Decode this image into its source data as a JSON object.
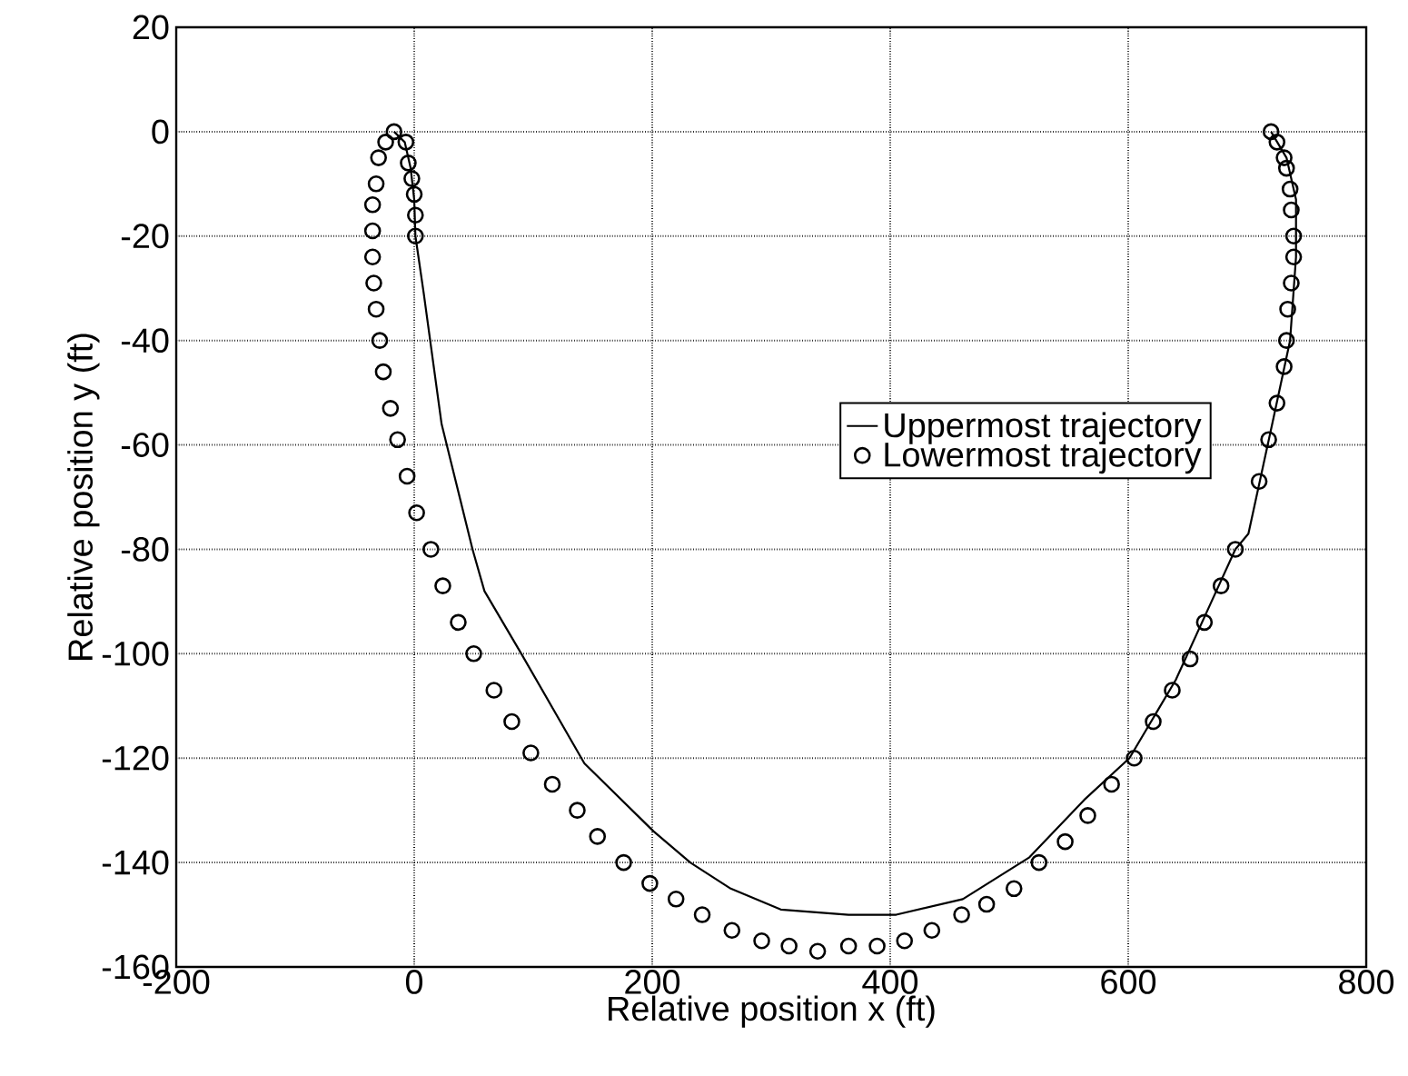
{
  "chart_data": {
    "type": "line",
    "xlabel": "Relative position x (ft)",
    "ylabel": "Relative position y (ft)",
    "xlim": [
      -200,
      800
    ],
    "ylim": [
      -160,
      20
    ],
    "xticks": [
      -200,
      0,
      200,
      400,
      600,
      800
    ],
    "yticks": [
      -160,
      -140,
      -120,
      -100,
      -80,
      -60,
      -40,
      -20,
      0,
      20
    ],
    "grid": true,
    "legend": "right",
    "series": [
      {
        "name": "Uppermost trajectory",
        "marker": "none",
        "line_style": "solid",
        "color": "#000000",
        "x": [
          -17,
          -8,
          -3,
          0,
          1,
          8,
          23,
          49,
          59,
          90,
          143,
          201,
          232,
          266,
          308,
          365,
          405,
          461,
          517,
          563,
          601,
          640,
          670,
          690,
          701,
          721,
          736,
          741,
          741,
          733,
          720
        ],
        "values": [
          0,
          -2,
          -7,
          -13,
          -20,
          -31,
          -56,
          -80,
          -88,
          -100,
          -121,
          -134,
          -140,
          -145,
          -149,
          -150,
          -150,
          -147,
          -139,
          -128,
          -120,
          -105,
          -90,
          -80,
          -77,
          -56,
          -40,
          -24,
          -13,
          -5,
          0
        ]
      },
      {
        "name": "Lowermost trajectory",
        "type": "scatter",
        "marker": "circle",
        "color": "#000000",
        "x": [
          1,
          1,
          0,
          -2,
          -5,
          -7,
          -17,
          -24,
          -30,
          -32,
          -35,
          -35,
          -35,
          -34,
          -32,
          -29,
          -26,
          -20,
          -14,
          -6,
          2,
          14,
          24,
          37,
          50,
          67,
          82,
          98,
          116,
          137,
          154,
          176,
          198,
          220,
          242,
          267,
          292,
          315,
          339,
          365,
          389,
          412,
          435,
          460,
          481,
          504,
          525,
          547,
          566,
          586,
          605,
          621,
          637,
          652,
          664,
          678,
          690,
          710,
          718,
          725,
          731,
          733,
          734,
          737,
          739,
          739,
          737,
          736,
          733,
          731,
          725,
          720
        ],
        "values": [
          -20,
          -16,
          -12,
          -9,
          -6,
          -2,
          0,
          -2,
          -5,
          -10,
          -14,
          -19,
          -24,
          -29,
          -34,
          -40,
          -46,
          -53,
          -59,
          -66,
          -73,
          -80,
          -87,
          -94,
          -100,
          -107,
          -113,
          -119,
          -125,
          -130,
          -135,
          -140,
          -144,
          -147,
          -150,
          -153,
          -155,
          -156,
          -157,
          -156,
          -156,
          -155,
          -153,
          -150,
          -148,
          -145,
          -140,
          -136,
          -131,
          -125,
          -120,
          -113,
          -107,
          -101,
          -94,
          -87,
          -80,
          -67,
          -59,
          -52,
          -45,
          -40,
          -34,
          -29,
          -24,
          -20,
          -15,
          -11,
          -7,
          -5,
          -2,
          0
        ]
      }
    ]
  }
}
